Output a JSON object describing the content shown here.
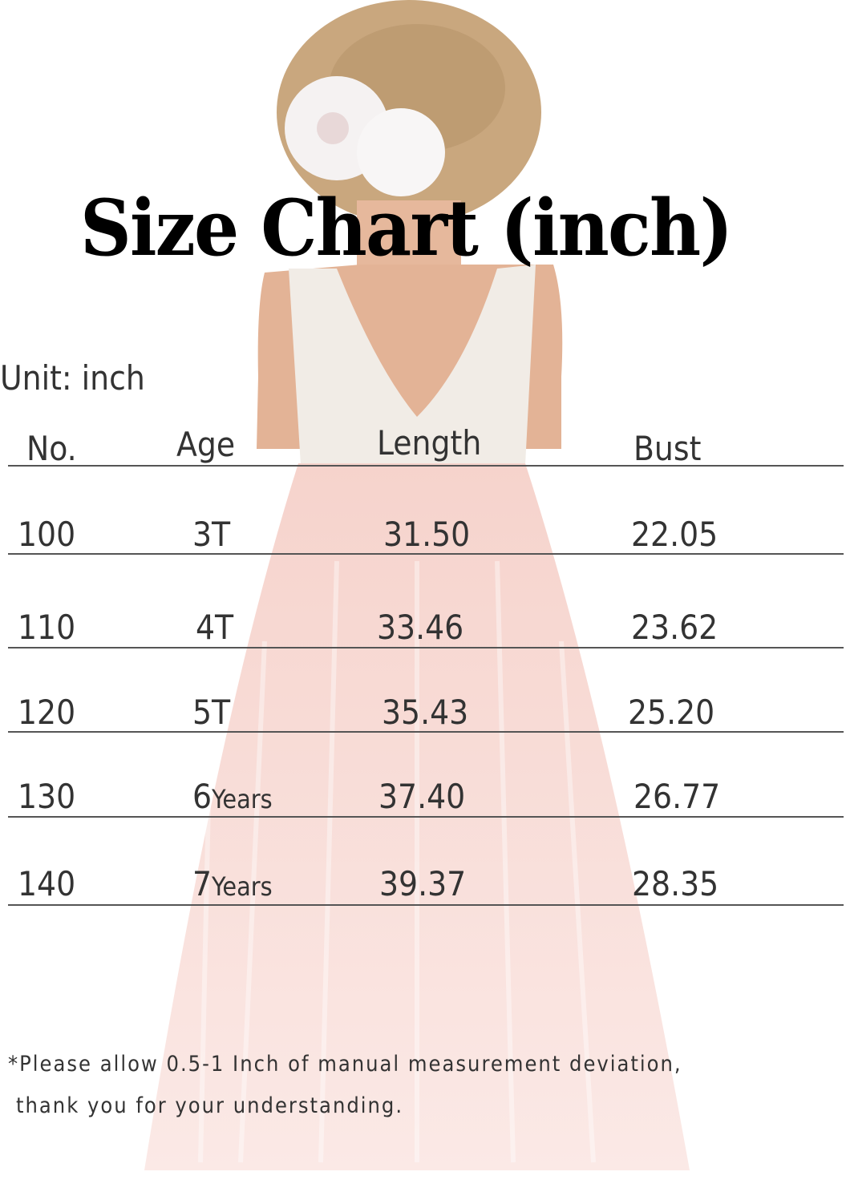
{
  "title": "Size Chart (inch)",
  "unit_label": "Unit: inch",
  "table": {
    "headers": [
      "No.",
      "Age",
      "Length",
      "Bust"
    ],
    "rows": [
      {
        "no": "100",
        "age_num": "3T",
        "age_suffix": "",
        "length": "31.50",
        "bust": "22.05"
      },
      {
        "no": "110",
        "age_num": "4T",
        "age_suffix": "",
        "length": "33.46",
        "bust": "23.62"
      },
      {
        "no": "120",
        "age_num": "5T",
        "age_suffix": "",
        "length": "35.43",
        "bust": "25.20"
      },
      {
        "no": "130",
        "age_num": "6",
        "age_suffix": "Years",
        "length": "37.40",
        "bust": "26.77"
      },
      {
        "no": "140",
        "age_num": "7",
        "age_suffix": "Years",
        "length": "39.37",
        "bust": "28.35"
      }
    ]
  },
  "note": {
    "line1": "*Please allow 0.5-1 Inch of manual measurement deviation,",
    "line2": "thank you for your understanding."
  },
  "colors": {
    "dress_pink": "#f7d9d3",
    "hair": "#c9a77e",
    "text": "#333333",
    "title": "#000000"
  }
}
